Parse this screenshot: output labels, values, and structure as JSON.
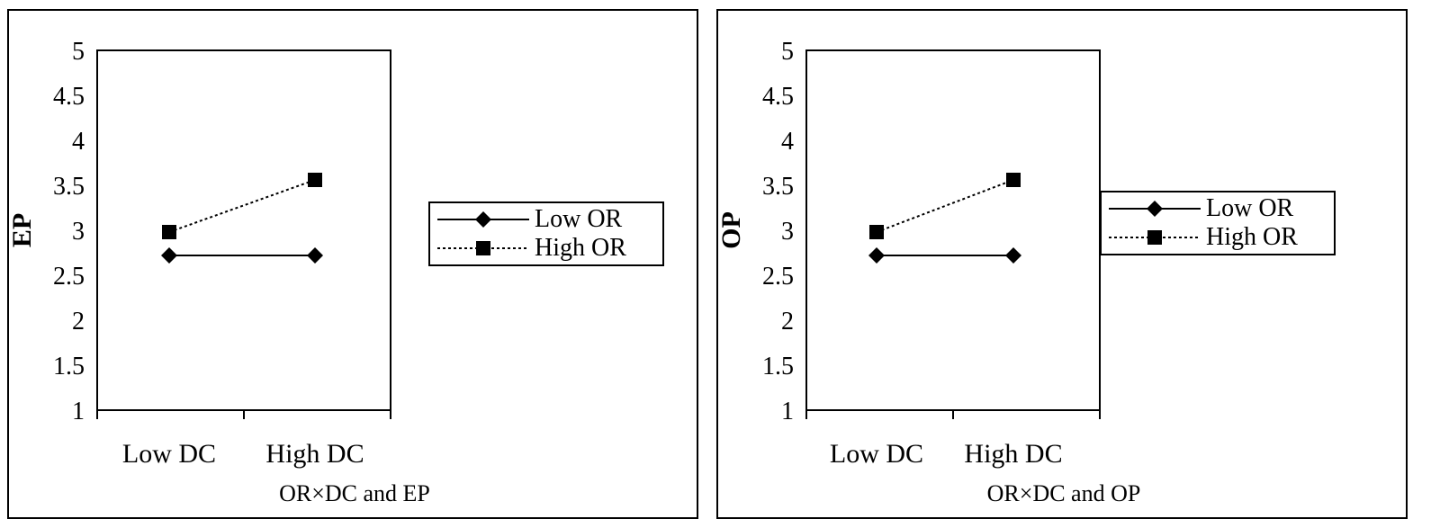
{
  "chart_data": [
    {
      "type": "line",
      "caption": "OR×DC and EP",
      "ylabel": "EP",
      "xlabel": "",
      "categories": [
        "Low DC",
        "High DC"
      ],
      "ylim": [
        1,
        5
      ],
      "yticks": [
        "1",
        "1.5",
        "2",
        "2.5",
        "3",
        "3.5",
        "4",
        "4.5",
        "5"
      ],
      "grid": false,
      "legend_position": "right",
      "series": [
        {
          "name": "Low OR",
          "values": [
            2.72,
            2.72
          ],
          "marker": "diamond",
          "line": "solid"
        },
        {
          "name": "High OR",
          "values": [
            2.98,
            3.56
          ],
          "marker": "square",
          "line": "dotted"
        }
      ]
    },
    {
      "type": "line",
      "caption": "OR×DC and OP",
      "ylabel": "OP",
      "xlabel": "",
      "categories": [
        "Low DC",
        "High DC"
      ],
      "ylim": [
        1,
        5
      ],
      "yticks": [
        "1",
        "1.5",
        "2",
        "2.5",
        "3",
        "3.5",
        "4",
        "4.5",
        "5"
      ],
      "grid": false,
      "legend_position": "right",
      "series": [
        {
          "name": "Low OR",
          "values": [
            2.72,
            2.72
          ],
          "marker": "diamond",
          "line": "solid"
        },
        {
          "name": "High OR",
          "values": [
            2.98,
            3.56
          ],
          "marker": "square",
          "line": "dotted"
        }
      ]
    }
  ]
}
